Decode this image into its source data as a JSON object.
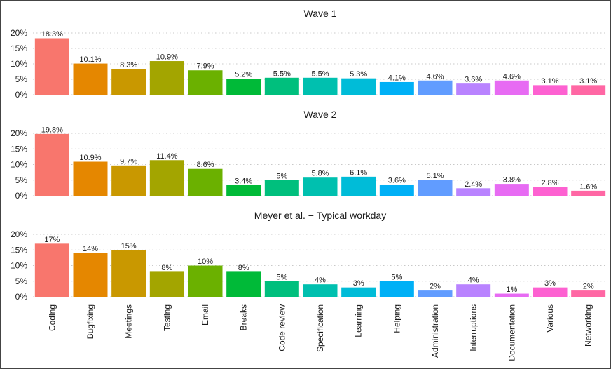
{
  "chart_data": [
    {
      "type": "bar",
      "title": "Wave 1",
      "categories": [
        "Coding",
        "Bugfixing",
        "Meetings",
        "Testing",
        "Email",
        "Breaks",
        "Code review",
        "Specification",
        "Learning",
        "Helping",
        "Administration",
        "Interruptions",
        "Documentation",
        "Various",
        "Networking"
      ],
      "values": [
        18.3,
        10.1,
        8.3,
        10.9,
        7.9,
        5.2,
        5.5,
        5.5,
        5.3,
        4.1,
        4.6,
        3.6,
        4.6,
        3.1,
        3.1
      ],
      "labels": [
        "18.3%",
        "10.1%",
        "8.3%",
        "10.9%",
        "7.9%",
        "5.2%",
        "5.5%",
        "5.5%",
        "5.3%",
        "4.1%",
        "4.6%",
        "3.6%",
        "4.6%",
        "3.1%",
        "3.1%"
      ],
      "yticks": [
        "0%",
        "5%",
        "10%",
        "15%",
        "20%"
      ],
      "ylim": [
        0,
        20
      ],
      "xlabel": "",
      "ylabel": ""
    },
    {
      "type": "bar",
      "title": "Wave 2",
      "categories": [
        "Coding",
        "Bugfixing",
        "Meetings",
        "Testing",
        "Email",
        "Breaks",
        "Code review",
        "Specification",
        "Learning",
        "Helping",
        "Administration",
        "Interruptions",
        "Documentation",
        "Various",
        "Networking"
      ],
      "values": [
        19.8,
        10.9,
        9.7,
        11.4,
        8.6,
        3.4,
        5,
        5.8,
        6.1,
        3.6,
        5.1,
        2.4,
        3.8,
        2.8,
        1.6
      ],
      "labels": [
        "19.8%",
        "10.9%",
        "9.7%",
        "11.4%",
        "8.6%",
        "3.4%",
        "5%",
        "5.8%",
        "6.1%",
        "3.6%",
        "5.1%",
        "2.4%",
        "3.8%",
        "2.8%",
        "1.6%"
      ],
      "yticks": [
        "0%",
        "5%",
        "10%",
        "15%",
        "20%"
      ],
      "ylim": [
        0,
        20
      ],
      "xlabel": "",
      "ylabel": ""
    },
    {
      "type": "bar",
      "title": "Meyer et al. − Typical workday",
      "categories": [
        "Coding",
        "Bugfixing",
        "Meetings",
        "Testing",
        "Email",
        "Breaks",
        "Code review",
        "Specification",
        "Learning",
        "Helping",
        "Administration",
        "Interruptions",
        "Documentation",
        "Various",
        "Networking"
      ],
      "values": [
        17,
        14,
        15,
        8,
        10,
        8,
        5,
        4,
        3,
        5,
        2,
        4,
        1,
        3,
        2
      ],
      "labels": [
        "17%",
        "14%",
        "15%",
        "8%",
        "10%",
        "8%",
        "5%",
        "4%",
        "3%",
        "5%",
        "2%",
        "4%",
        "1%",
        "3%",
        "2%"
      ],
      "yticks": [
        "0%",
        "5%",
        "10%",
        "15%",
        "20%"
      ],
      "ylim": [
        0,
        20
      ],
      "xlabel": "",
      "ylabel": ""
    }
  ],
  "colors": [
    "#F8766D",
    "#E58700",
    "#C99800",
    "#A3A500",
    "#6BB100",
    "#00BA38",
    "#00BF7D",
    "#00C0AF",
    "#00BCD8",
    "#00B0F6",
    "#619CFF",
    "#B983FF",
    "#E76BF3",
    "#FD61D1",
    "#FF67A4"
  ]
}
